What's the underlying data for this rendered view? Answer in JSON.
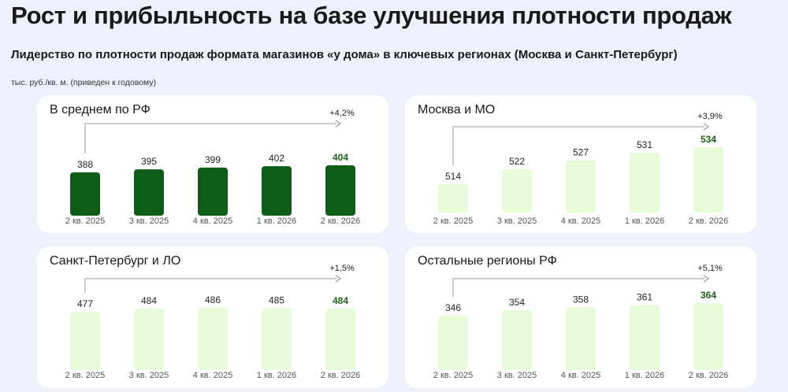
{
  "page": {
    "title": "Рост и прибыльность на базе улучшения плотности продаж",
    "subtitle": "Лидерство по плотности продаж формата магазинов «у дома» в ключевых регионах (Москва и Санкт-Петербург)",
    "unit": "тыс. руб./кв. м. (приведен к годовому)"
  },
  "colors": {
    "dark_bar": "#0e5c17",
    "light_bar": "#e6fbd7",
    "highlight_text": "#1e5e1a",
    "card_bg": "#ffffff",
    "page_bg": "#eef0fc"
  },
  "chart_data": [
    {
      "type": "bar",
      "title": "В среднем по РФ",
      "categories": [
        "2 кв. 2025",
        "3 кв. 2025",
        "4 кв. 2025",
        "1 кв. 2026",
        "2 кв. 2026"
      ],
      "values": [
        388,
        395,
        399,
        402,
        404
      ],
      "value_labels": [
        "388",
        "395",
        "399",
        "402",
        "404"
      ],
      "growth_label": "+4,2%",
      "bar_style": "dark",
      "highlight_last": true
    },
    {
      "type": "bar",
      "title": "Москва и МО",
      "categories": [
        "2 кв. 2025",
        "3 кв. 2025",
        "4 кв. 2025",
        "1 кв. 2026",
        "2 кв. 2026"
      ],
      "values": [
        514,
        522,
        527,
        531,
        534
      ],
      "value_labels": [
        "514",
        "522",
        "527",
        "531",
        "534"
      ],
      "growth_label": "+3,9%",
      "bar_style": "light",
      "highlight_last": true
    },
    {
      "type": "bar",
      "title": "Санкт-Петербург и ЛО",
      "categories": [
        "2 кв. 2025",
        "3 кв. 2025",
        "4 кв. 2025",
        "1 кв. 2026",
        "2 кв. 2026"
      ],
      "values": [
        477,
        484,
        486,
        485,
        484
      ],
      "value_labels": [
        "477",
        "484",
        "486",
        "485",
        "484"
      ],
      "growth_label": "+1,5%",
      "bar_style": "light",
      "highlight_last": true
    },
    {
      "type": "bar",
      "title": "Остальные регионы РФ",
      "categories": [
        "2 кв. 2025",
        "3 кв. 2025",
        "4 кв. 2025",
        "1 кв. 2026",
        "2 кв. 2026"
      ],
      "values": [
        346,
        354,
        358,
        361,
        364
      ],
      "value_labels": [
        "346",
        "354",
        "358",
        "361",
        "364"
      ],
      "growth_label": "+5,1%",
      "bar_style": "light",
      "highlight_last": true
    }
  ]
}
